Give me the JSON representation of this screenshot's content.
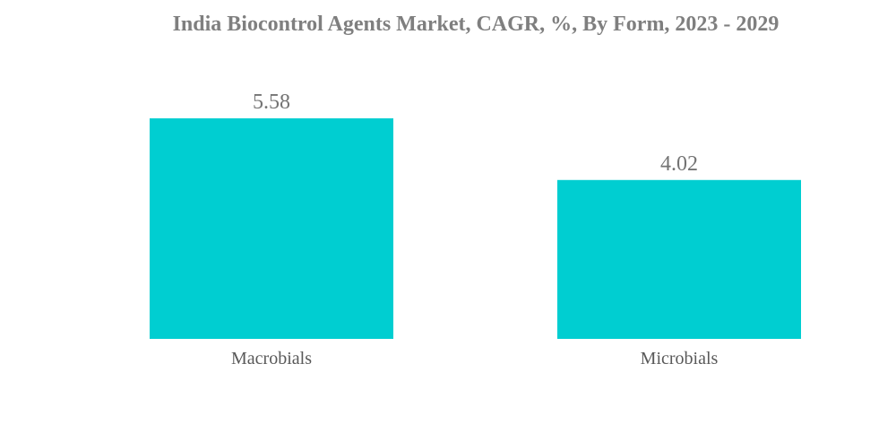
{
  "chart_data": {
    "type": "bar",
    "title": "India Biocontrol Agents Market, CAGR, %, By Form, 2023 - 2029",
    "categories": [
      "Macrobials",
      "Microbials"
    ],
    "values": [
      5.58,
      4.02
    ],
    "value_labels": [
      "5.58",
      "4.02"
    ],
    "xlabel": "",
    "ylabel": "",
    "ylim": [
      0,
      5.58
    ],
    "grid": false,
    "legend": "none",
    "bar_color": "#00CED1"
  }
}
